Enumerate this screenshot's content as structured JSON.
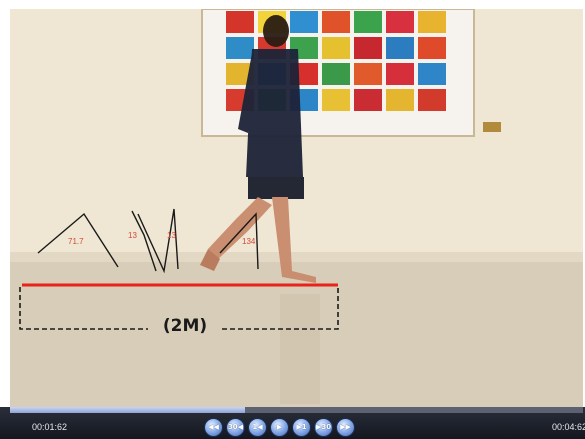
{
  "player": {
    "time_current": "00:01:62",
    "time_total": "00:04:62",
    "progress_fraction": 0.41,
    "buttons": [
      {
        "name": "rewind-start-button",
        "glyph": "◀◀"
      },
      {
        "name": "back-30-button",
        "glyph": "30◀"
      },
      {
        "name": "back-1-button",
        "glyph": "1◀"
      },
      {
        "name": "play-button",
        "glyph": "▶"
      },
      {
        "name": "forward-1-button",
        "glyph": "▶1"
      },
      {
        "name": "forward-30-button",
        "glyph": "▶30"
      },
      {
        "name": "forward-end-button",
        "glyph": "▶▶"
      }
    ]
  },
  "annotation": {
    "distance_label": "(2M)",
    "angles": [
      "71.7",
      "13",
      "13",
      "134"
    ]
  },
  "colors": {
    "measure_line": "#e8231c",
    "dashed_box": "#1a1a1a",
    "angle_text": "#d24a3a"
  }
}
